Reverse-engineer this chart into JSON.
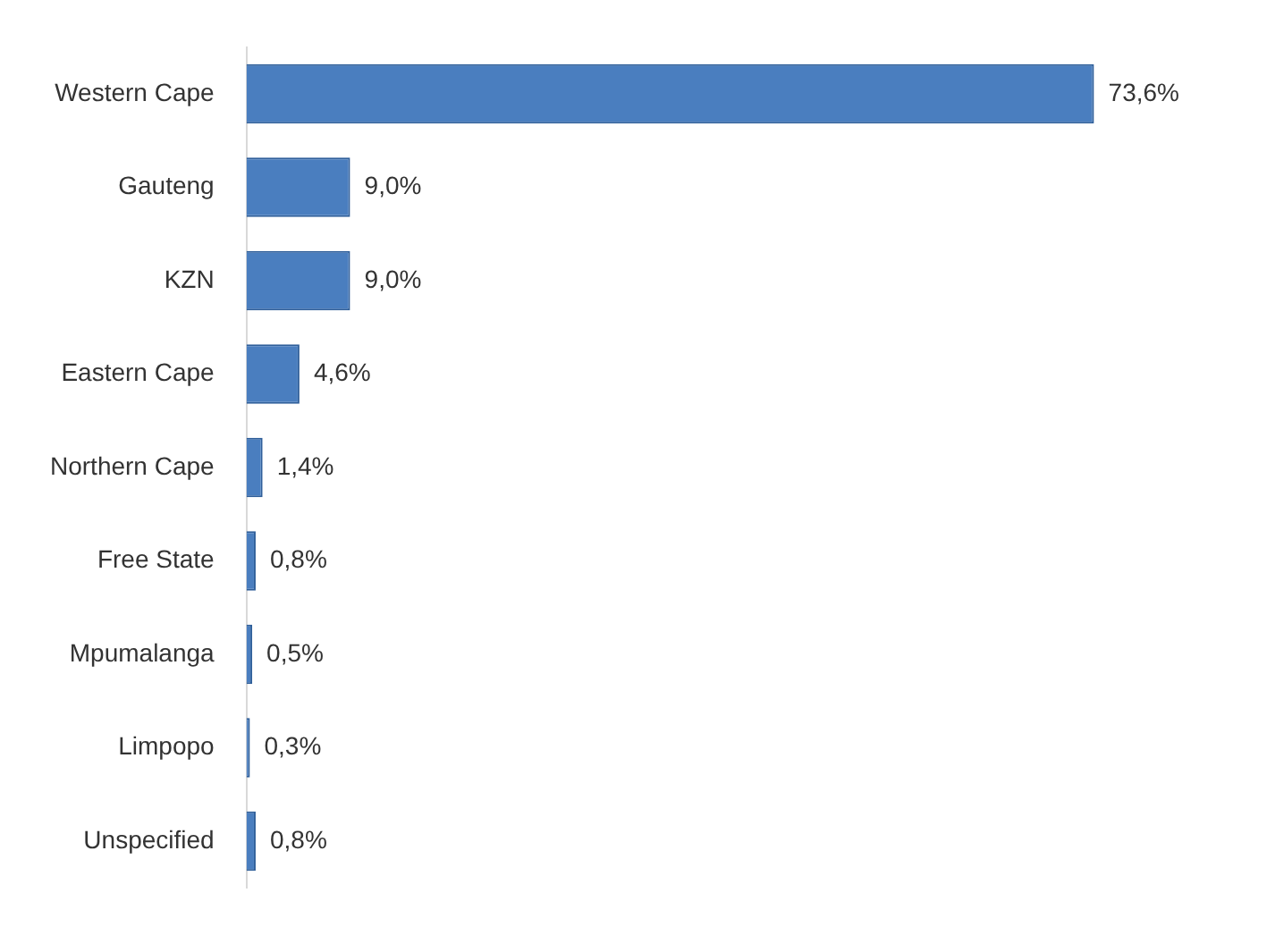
{
  "chart_data": {
    "type": "bar",
    "orientation": "horizontal",
    "categories": [
      "Western Cape",
      "Gauteng",
      "KZN",
      "Eastern Cape",
      "Northern Cape",
      "Free State",
      "Mpumalanga",
      "Limpopo",
      "Unspecified"
    ],
    "values": [
      73.6,
      9.0,
      9.0,
      4.6,
      1.4,
      0.8,
      0.5,
      0.3,
      0.8
    ],
    "value_labels": [
      "73,6%",
      "9,0%",
      "9,0%",
      "4,6%",
      "1,4%",
      "0,8%",
      "0,5%",
      "0,3%",
      "0,8%"
    ],
    "color": "#4a7ebf",
    "grid": false,
    "legend": false
  }
}
